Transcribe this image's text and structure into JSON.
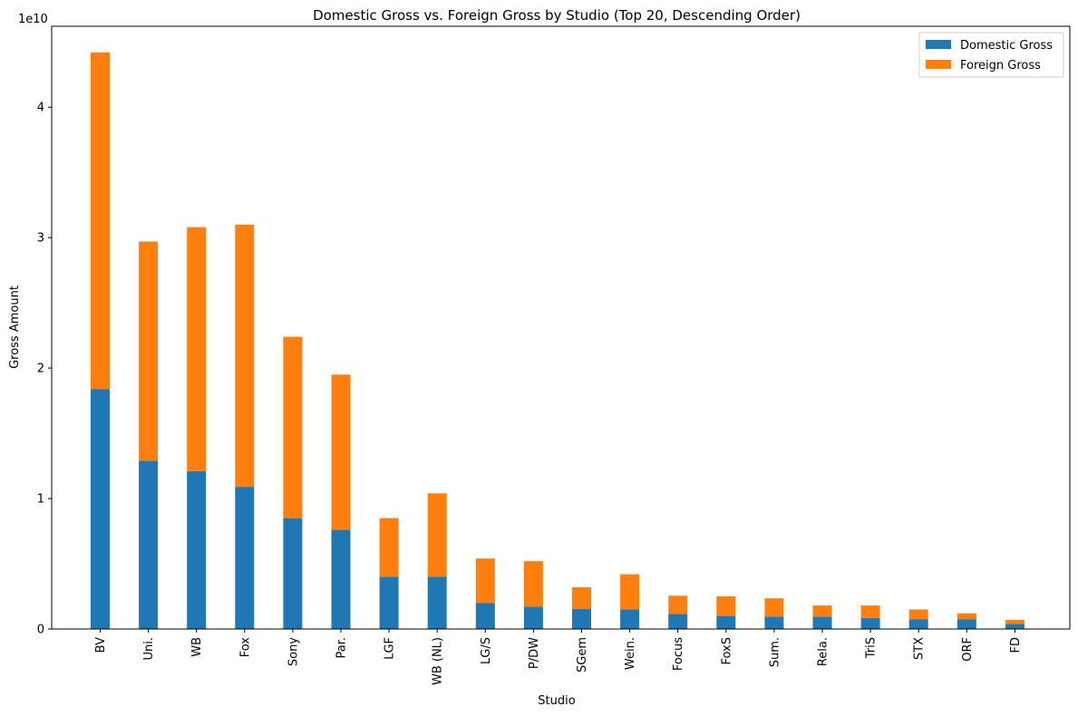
{
  "chart_data": {
    "type": "bar",
    "stacked": true,
    "title": "Domestic Gross vs. Foreign Gross by Studio (Top 20, Descending Order)",
    "xlabel": "Studio",
    "ylabel": "Gross Amount",
    "y_offset_label": "1e10",
    "ylim": [
      0,
      46200000000.0
    ],
    "yticks": [
      0,
      10000000000.0,
      20000000000.0,
      30000000000.0,
      40000000000.0
    ],
    "ytick_labels": [
      "0",
      "1",
      "2",
      "3",
      "4"
    ],
    "legend_position": "top-right",
    "grid": false,
    "categories": [
      "BV",
      "Uni.",
      "WB",
      "Fox",
      "Sony",
      "Par.",
      "LGF",
      "WB (NL)",
      "LG/S",
      "P/DW",
      "SGem",
      "Wein.",
      "Focus",
      "FoxS",
      "Sum.",
      "Rela.",
      "TriS",
      "STX",
      "ORF",
      "FD"
    ],
    "series": [
      {
        "name": "Domestic Gross",
        "color": "#1f77b4",
        "values": [
          18400000000.0,
          12900000000.0,
          12100000000.0,
          10900000000.0,
          8500000000.0,
          7600000000.0,
          4000000000.0,
          4000000000.0,
          2000000000.0,
          1700000000.0,
          1550000000.0,
          1500000000.0,
          1150000000.0,
          1000000000.0,
          950000000.0,
          950000000.0,
          850000000.0,
          750000000.0,
          750000000.0,
          400000000.0
        ]
      },
      {
        "name": "Foreign Gross",
        "color": "#ff7f0e",
        "values": [
          25800000000.0,
          16800000000.0,
          18700000000.0,
          20100000000.0,
          13900000000.0,
          11900000000.0,
          4500000000.0,
          6400000000.0,
          3400000000.0,
          3500000000.0,
          1650000000.0,
          2700000000.0,
          1400000000.0,
          1500000000.0,
          1400000000.0,
          850000000.0,
          950000000.0,
          750000000.0,
          450000000.0,
          300000000.0
        ]
      }
    ]
  }
}
